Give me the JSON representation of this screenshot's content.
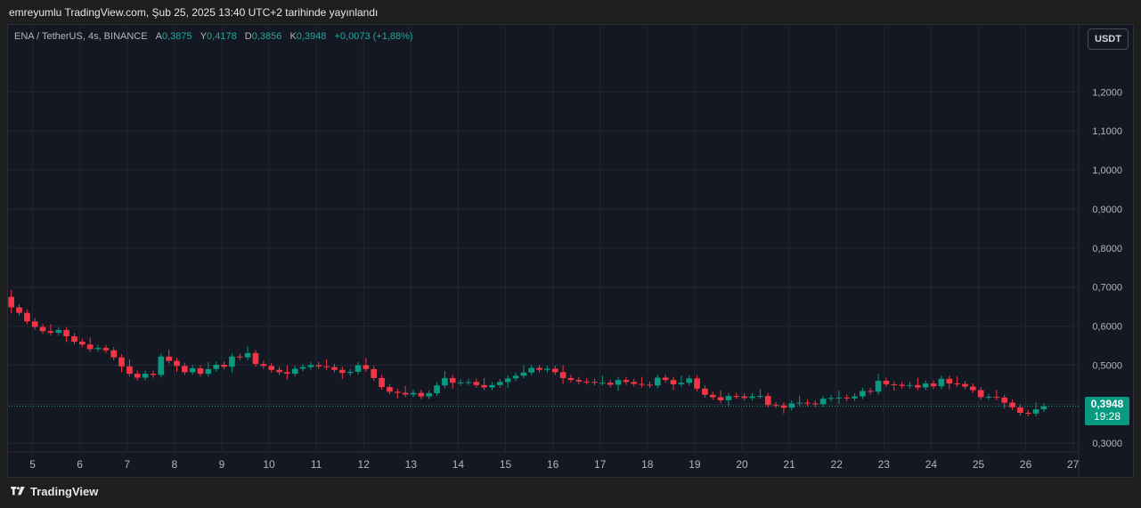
{
  "header": {
    "published_text": "emreyumlu TradingView.com, Şub 25, 2025 13:40 UTC+2 tarihinde yayınlandı"
  },
  "legend": {
    "symbol": "ENA / TetherUS, 4s, BINANCE",
    "open_label": "A",
    "open": "0,3875",
    "high_label": "Y",
    "high": "0,4178",
    "low_label": "D",
    "low": "0,3856",
    "close_label": "K",
    "close": "0,3948",
    "change": "+0,0073 (+1,88%)"
  },
  "currency_button": "USDT",
  "price_badge": {
    "price": "0,3948",
    "countdown": "19:28"
  },
  "footer": {
    "brand": "TradingView"
  },
  "colors": {
    "up": "#089981",
    "down": "#f23645",
    "background": "#141823",
    "grid": "#232733"
  },
  "chart_data": {
    "type": "candlestick",
    "title": "ENA / TetherUS, 4s, BINANCE",
    "ylim": [
      0.28,
      1.31
    ],
    "y_ticks": [
      {
        "value": 0.3,
        "label": "0,3000"
      },
      {
        "value": 0.4,
        "label": "0,4000"
      },
      {
        "value": 0.5,
        "label": "0,5000"
      },
      {
        "value": 0.6,
        "label": "0,6000"
      },
      {
        "value": 0.7,
        "label": "0,7000"
      },
      {
        "value": 0.8,
        "label": "0,8000"
      },
      {
        "value": 0.9,
        "label": "0,9000"
      },
      {
        "value": 1.0,
        "label": "1,0000"
      },
      {
        "value": 1.1,
        "label": "1,1000"
      },
      {
        "value": 1.2,
        "label": "1,2000"
      }
    ],
    "x_ticks": [
      "5",
      "6",
      "7",
      "8",
      "9",
      "10",
      "11",
      "12",
      "13",
      "14",
      "15",
      "16",
      "17",
      "18",
      "19",
      "20",
      "21",
      "22",
      "23",
      "24",
      "25",
      "26",
      "27"
    ],
    "x_range": [
      4.5,
      27.1
    ],
    "candles_per_day": 6,
    "first_candle_x": 4.55,
    "last_price": 0.3948,
    "closes": [
      0.648,
      0.634,
      0.612,
      0.598,
      0.587,
      0.583,
      0.59,
      0.574,
      0.56,
      0.553,
      0.541,
      0.544,
      0.538,
      0.52,
      0.497,
      0.478,
      0.468,
      0.478,
      0.475,
      0.522,
      0.511,
      0.498,
      0.482,
      0.492,
      0.478,
      0.49,
      0.501,
      0.496,
      0.522,
      0.52,
      0.531,
      0.503,
      0.498,
      0.488,
      0.482,
      0.478,
      0.491,
      0.495,
      0.5,
      0.497,
      0.495,
      0.488,
      0.48,
      0.483,
      0.5,
      0.49,
      0.467,
      0.444,
      0.432,
      0.429,
      0.425,
      0.429,
      0.42,
      0.428,
      0.448,
      0.467,
      0.455,
      0.456,
      0.457,
      0.449,
      0.443,
      0.449,
      0.457,
      0.466,
      0.473,
      0.481,
      0.493,
      0.488,
      0.491,
      0.482,
      0.467,
      0.462,
      0.458,
      0.457,
      0.455,
      0.455,
      0.45,
      0.462,
      0.457,
      0.452,
      0.45,
      0.448,
      0.468,
      0.462,
      0.451,
      0.455,
      0.466,
      0.44,
      0.424,
      0.418,
      0.41,
      0.421,
      0.42,
      0.416,
      0.42,
      0.421,
      0.398,
      0.397,
      0.391,
      0.402,
      0.404,
      0.402,
      0.4,
      0.414,
      0.416,
      0.417,
      0.415,
      0.42,
      0.434,
      0.432,
      0.46,
      0.451,
      0.45,
      0.447,
      0.449,
      0.443,
      0.453,
      0.446,
      0.465,
      0.453,
      0.452,
      0.445,
      0.436,
      0.418,
      0.419,
      0.417,
      0.404,
      0.392,
      0.378,
      0.376,
      0.387,
      0.3948
    ]
  }
}
